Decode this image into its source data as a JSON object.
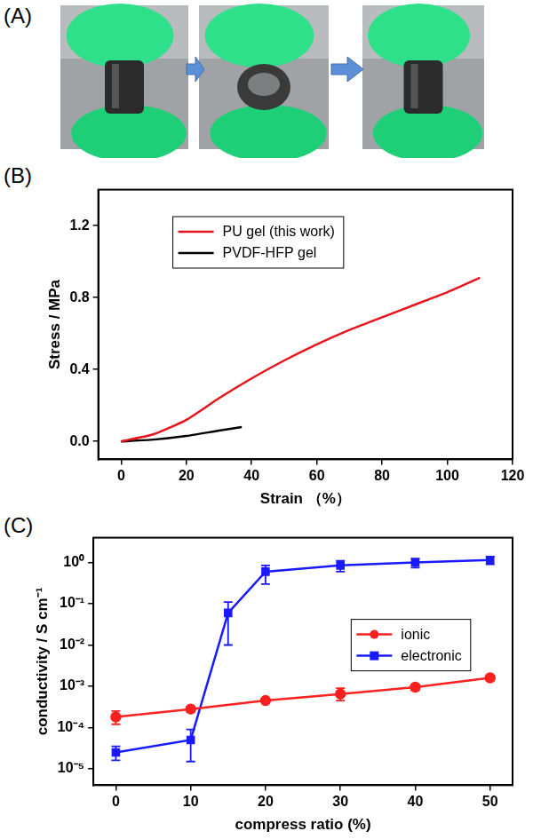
{
  "panel_labels": [
    "(A)",
    "(B)",
    "(C)"
  ],
  "chart_data": [
    {
      "type": "line",
      "x_label": "Strain （%）",
      "y_label": "Stress / MPa",
      "xlim": [
        -7,
        120
      ],
      "xticks": [
        0,
        20,
        40,
        60,
        80,
        100,
        120
      ],
      "ylim": [
        -0.1,
        1.4
      ],
      "yticks": [
        {
          "value": 0,
          "label": "0.0"
        },
        0.4,
        0.8,
        1.2
      ],
      "grid": false,
      "legend": "upper left",
      "series": [
        {
          "name": "PU gel (this work)",
          "color": "#e8141b",
          "line_style": "solid",
          "x": [
            0,
            10,
            20,
            30,
            40,
            50,
            60,
            70,
            80,
            90,
            100,
            110
          ],
          "values": [
            0,
            0.04,
            0.12,
            0.24,
            0.35,
            0.45,
            0.54,
            0.62,
            0.69,
            0.76,
            0.83,
            0.91
          ]
        },
        {
          "name": "PVDF-HFP gel",
          "color": "#000000",
          "line_style": "solid",
          "x": [
            0,
            10,
            20,
            30,
            37
          ],
          "values": [
            0,
            0.01,
            0.03,
            0.06,
            0.08
          ]
        }
      ]
    },
    {
      "type": "line",
      "log": "y",
      "x_label": "compress ratio (%)",
      "y_label": "conductivity / S cm⁻¹",
      "xlim": [
        -3,
        53
      ],
      "xticks": [
        0,
        10,
        20,
        30,
        40,
        50
      ],
      "ylim": [
        4e-06,
        4
      ],
      "yticks": [
        {
          "value": 1e-05,
          "label": "10⁻⁵"
        },
        {
          "value": 0.0001,
          "label": "10⁻⁴"
        },
        {
          "value": 0.001,
          "label": "10⁻³"
        },
        {
          "value": 0.01,
          "label": "10⁻²"
        },
        {
          "value": 0.1,
          "label": "10⁻¹"
        },
        {
          "value": 1,
          "label": "10⁰"
        }
      ],
      "grid": false,
      "legend": "right",
      "series": [
        {
          "name": "ionic",
          "color": "#ff2020",
          "marker": "circle",
          "line_style": "solid",
          "x": [
            0,
            10,
            20,
            30,
            40,
            50
          ],
          "values": [
            0.00018,
            0.00028,
            0.00045,
            0.00065,
            0.00095,
            0.0016
          ],
          "error_low": [
            0.00012,
            0.00024,
            0.0004,
            0.00045,
            0.0008,
            0.0015
          ],
          "error_high": [
            0.00025,
            0.00032,
            0.0005,
            0.0009,
            0.0011,
            0.0017
          ]
        },
        {
          "name": "electronic",
          "color": "#1a1aff",
          "marker": "square",
          "line_style": "solid",
          "x": [
            0,
            10,
            15,
            20,
            30,
            40,
            50
          ],
          "values": [
            2.5e-05,
            5e-05,
            0.06,
            0.6,
            0.85,
            1.0,
            1.15
          ],
          "error_low": [
            1.6e-05,
            1.5e-05,
            0.01,
            0.3,
            0.6,
            0.75,
            0.9
          ],
          "error_high": [
            3.5e-05,
            9e-05,
            0.11,
            0.85,
            1.1,
            1.25,
            1.4
          ]
        }
      ]
    }
  ]
}
